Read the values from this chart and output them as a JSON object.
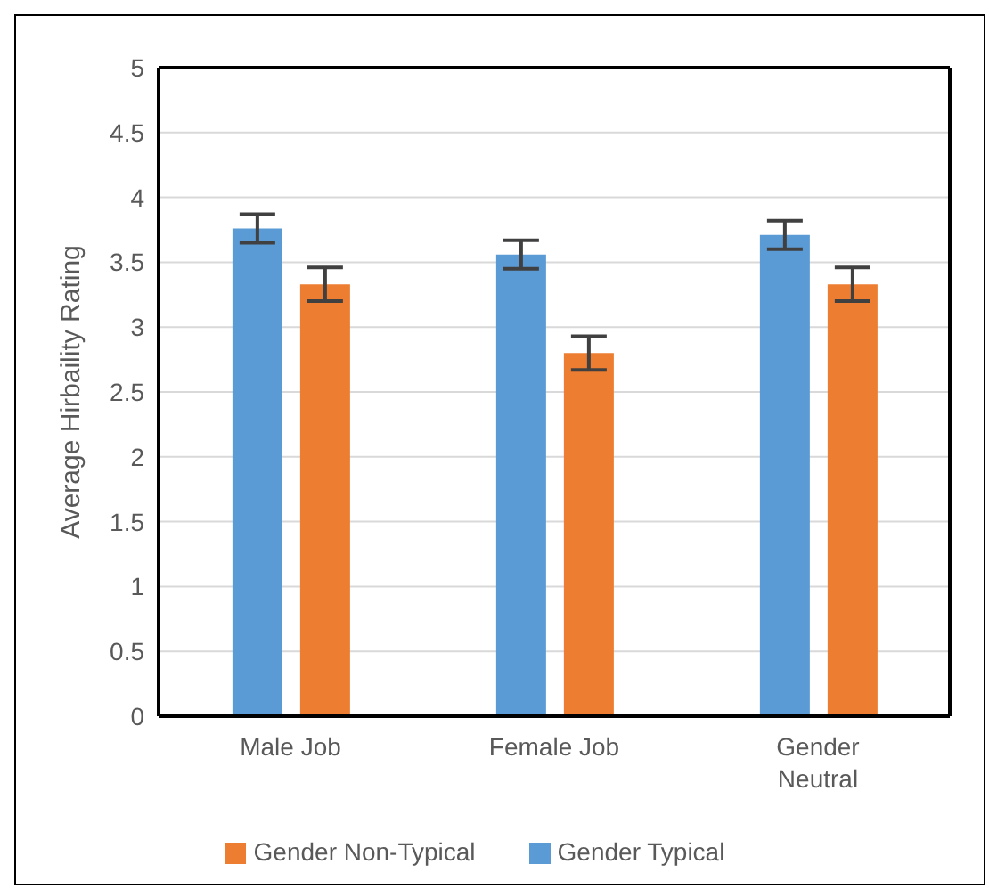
{
  "chart_data": {
    "type": "bar",
    "ylabel": "Average Hirbaility Rating",
    "categories": [
      "Male Job",
      "Female Job",
      "Gender Neutral"
    ],
    "series": [
      {
        "name": "Gender Typical",
        "color": "#5b9bd5",
        "values": [
          3.76,
          3.56,
          3.71
        ],
        "errors": [
          0.11,
          0.11,
          0.11
        ]
      },
      {
        "name": "Gender Non-Typical",
        "color": "#ed7d31",
        "values": [
          3.33,
          2.8,
          3.33
        ],
        "errors": [
          0.13,
          0.13,
          0.13
        ]
      }
    ],
    "ylim": [
      0,
      5
    ],
    "yticks": [
      0,
      0.5,
      1,
      1.5,
      2,
      2.5,
      3,
      3.5,
      4,
      4.5,
      5
    ],
    "grid": "y",
    "legend": "bottom"
  }
}
